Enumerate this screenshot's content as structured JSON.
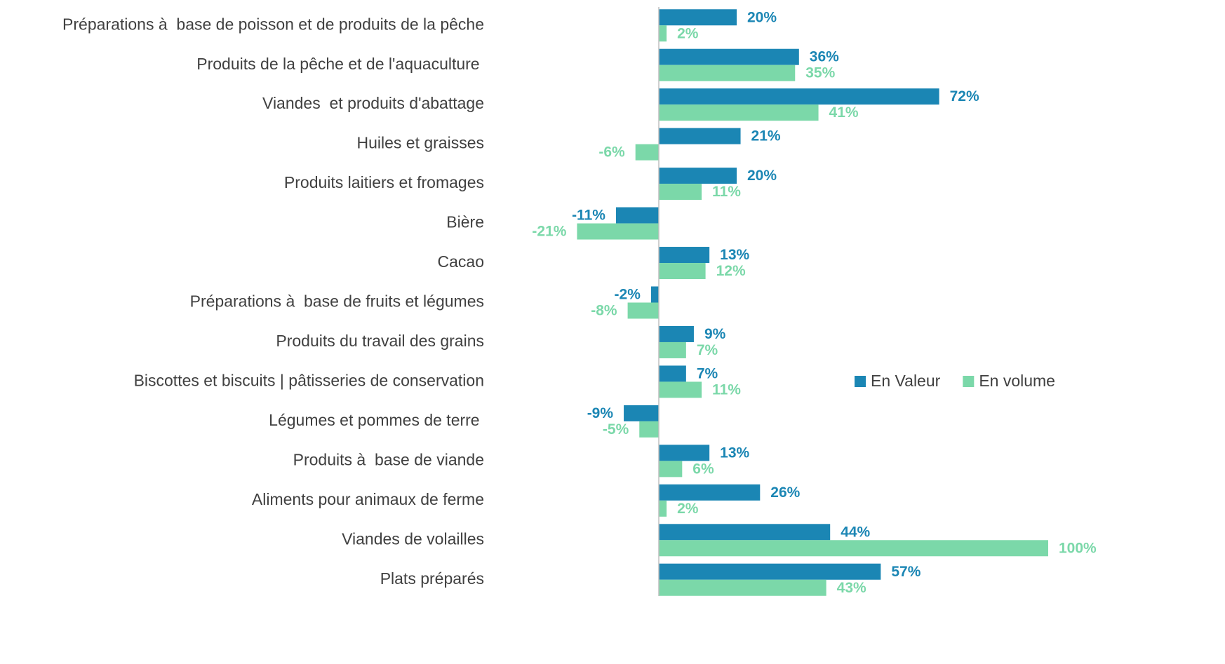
{
  "chart_data": {
    "type": "barh",
    "categories": [
      "Préparations à  base de poisson et de produits de la pêche",
      "Produits de la pêche et de l'aquaculture ",
      "Viandes  et produits d'abattage",
      "Huiles et graisses",
      "Produits laitiers et fromages",
      "Bière",
      "Cacao",
      "Préparations à  base de fruits et légumes",
      "Produits du travail des grains",
      "Biscottes et biscuits | pâtisseries de conservation",
      "Légumes et pommes de terre ",
      "Produits à  base de viande",
      "Aliments pour animaux de ferme",
      "Viandes de volailles",
      "Plats préparés"
    ],
    "series": [
      {
        "name": "En Valeur",
        "color": "#1b86b4",
        "values": [
          20,
          36,
          72,
          21,
          20,
          -11,
          13,
          -2,
          9,
          7,
          -9,
          13,
          26,
          44,
          57
        ],
        "value_labels": [
          "20%",
          "36%",
          "72%",
          "21%",
          "20%",
          "-11%",
          "13%",
          "-2%",
          "9%",
          "7%",
          "-9%",
          "13%",
          "26%",
          "44%",
          "57%"
        ]
      },
      {
        "name": "En volume",
        "color": "#7bd8a9",
        "values": [
          2,
          35,
          41,
          -6,
          11,
          -21,
          12,
          -8,
          7,
          11,
          -5,
          6,
          2,
          100,
          43
        ],
        "value_labels": [
          "2%",
          "35%",
          "41%",
          "-6%",
          "11%",
          "-21%",
          "12%",
          "-8%",
          "7%",
          "11%",
          "-5%",
          "6%",
          "2%",
          "100%",
          "43%"
        ]
      }
    ],
    "xlim": [
      -30,
      110
    ],
    "legend": "right"
  }
}
